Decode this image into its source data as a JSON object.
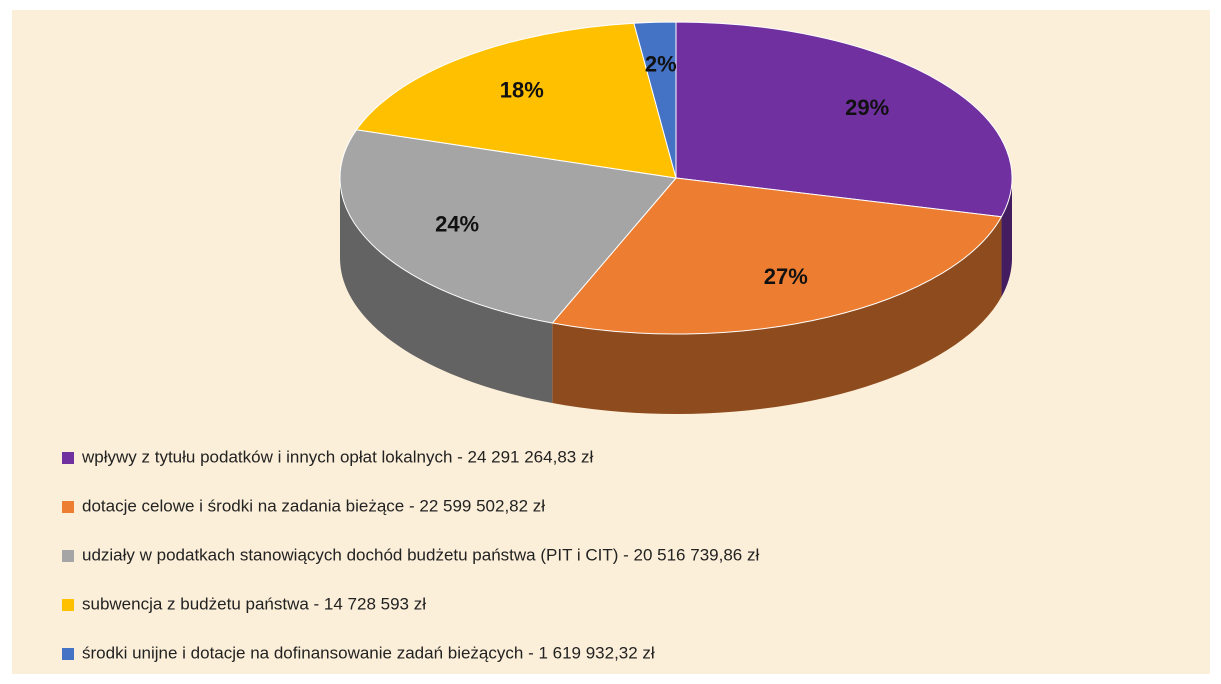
{
  "chart_data": {
    "type": "pie",
    "categories": [
      "wpływy z tytułu podatków i innych opłat lokalnych - 24 291 264,83 zł",
      "dotacje celowe i środki na zadania bieżące - 22 599 502,82 zł",
      "udziały w podatkach stanowiących dochód budżetu państwa (PIT i CIT) - 20 516 739,86 zł",
      "subwencja z budżetu państwa - 14 728 593 zł",
      "środki unijne i dotacje na dofinansowanie zadań bieżących -  1 619 932,32 zł"
    ],
    "values": [
      29,
      27,
      24,
      18,
      2
    ],
    "value_labels": [
      "29%",
      "27%",
      "24%",
      "18%",
      "2%"
    ],
    "colors": [
      "#7030a0",
      "#ed7d31",
      "#a5a5a5",
      "#ffc000",
      "#4472c4"
    ],
    "legend": "bottom"
  }
}
